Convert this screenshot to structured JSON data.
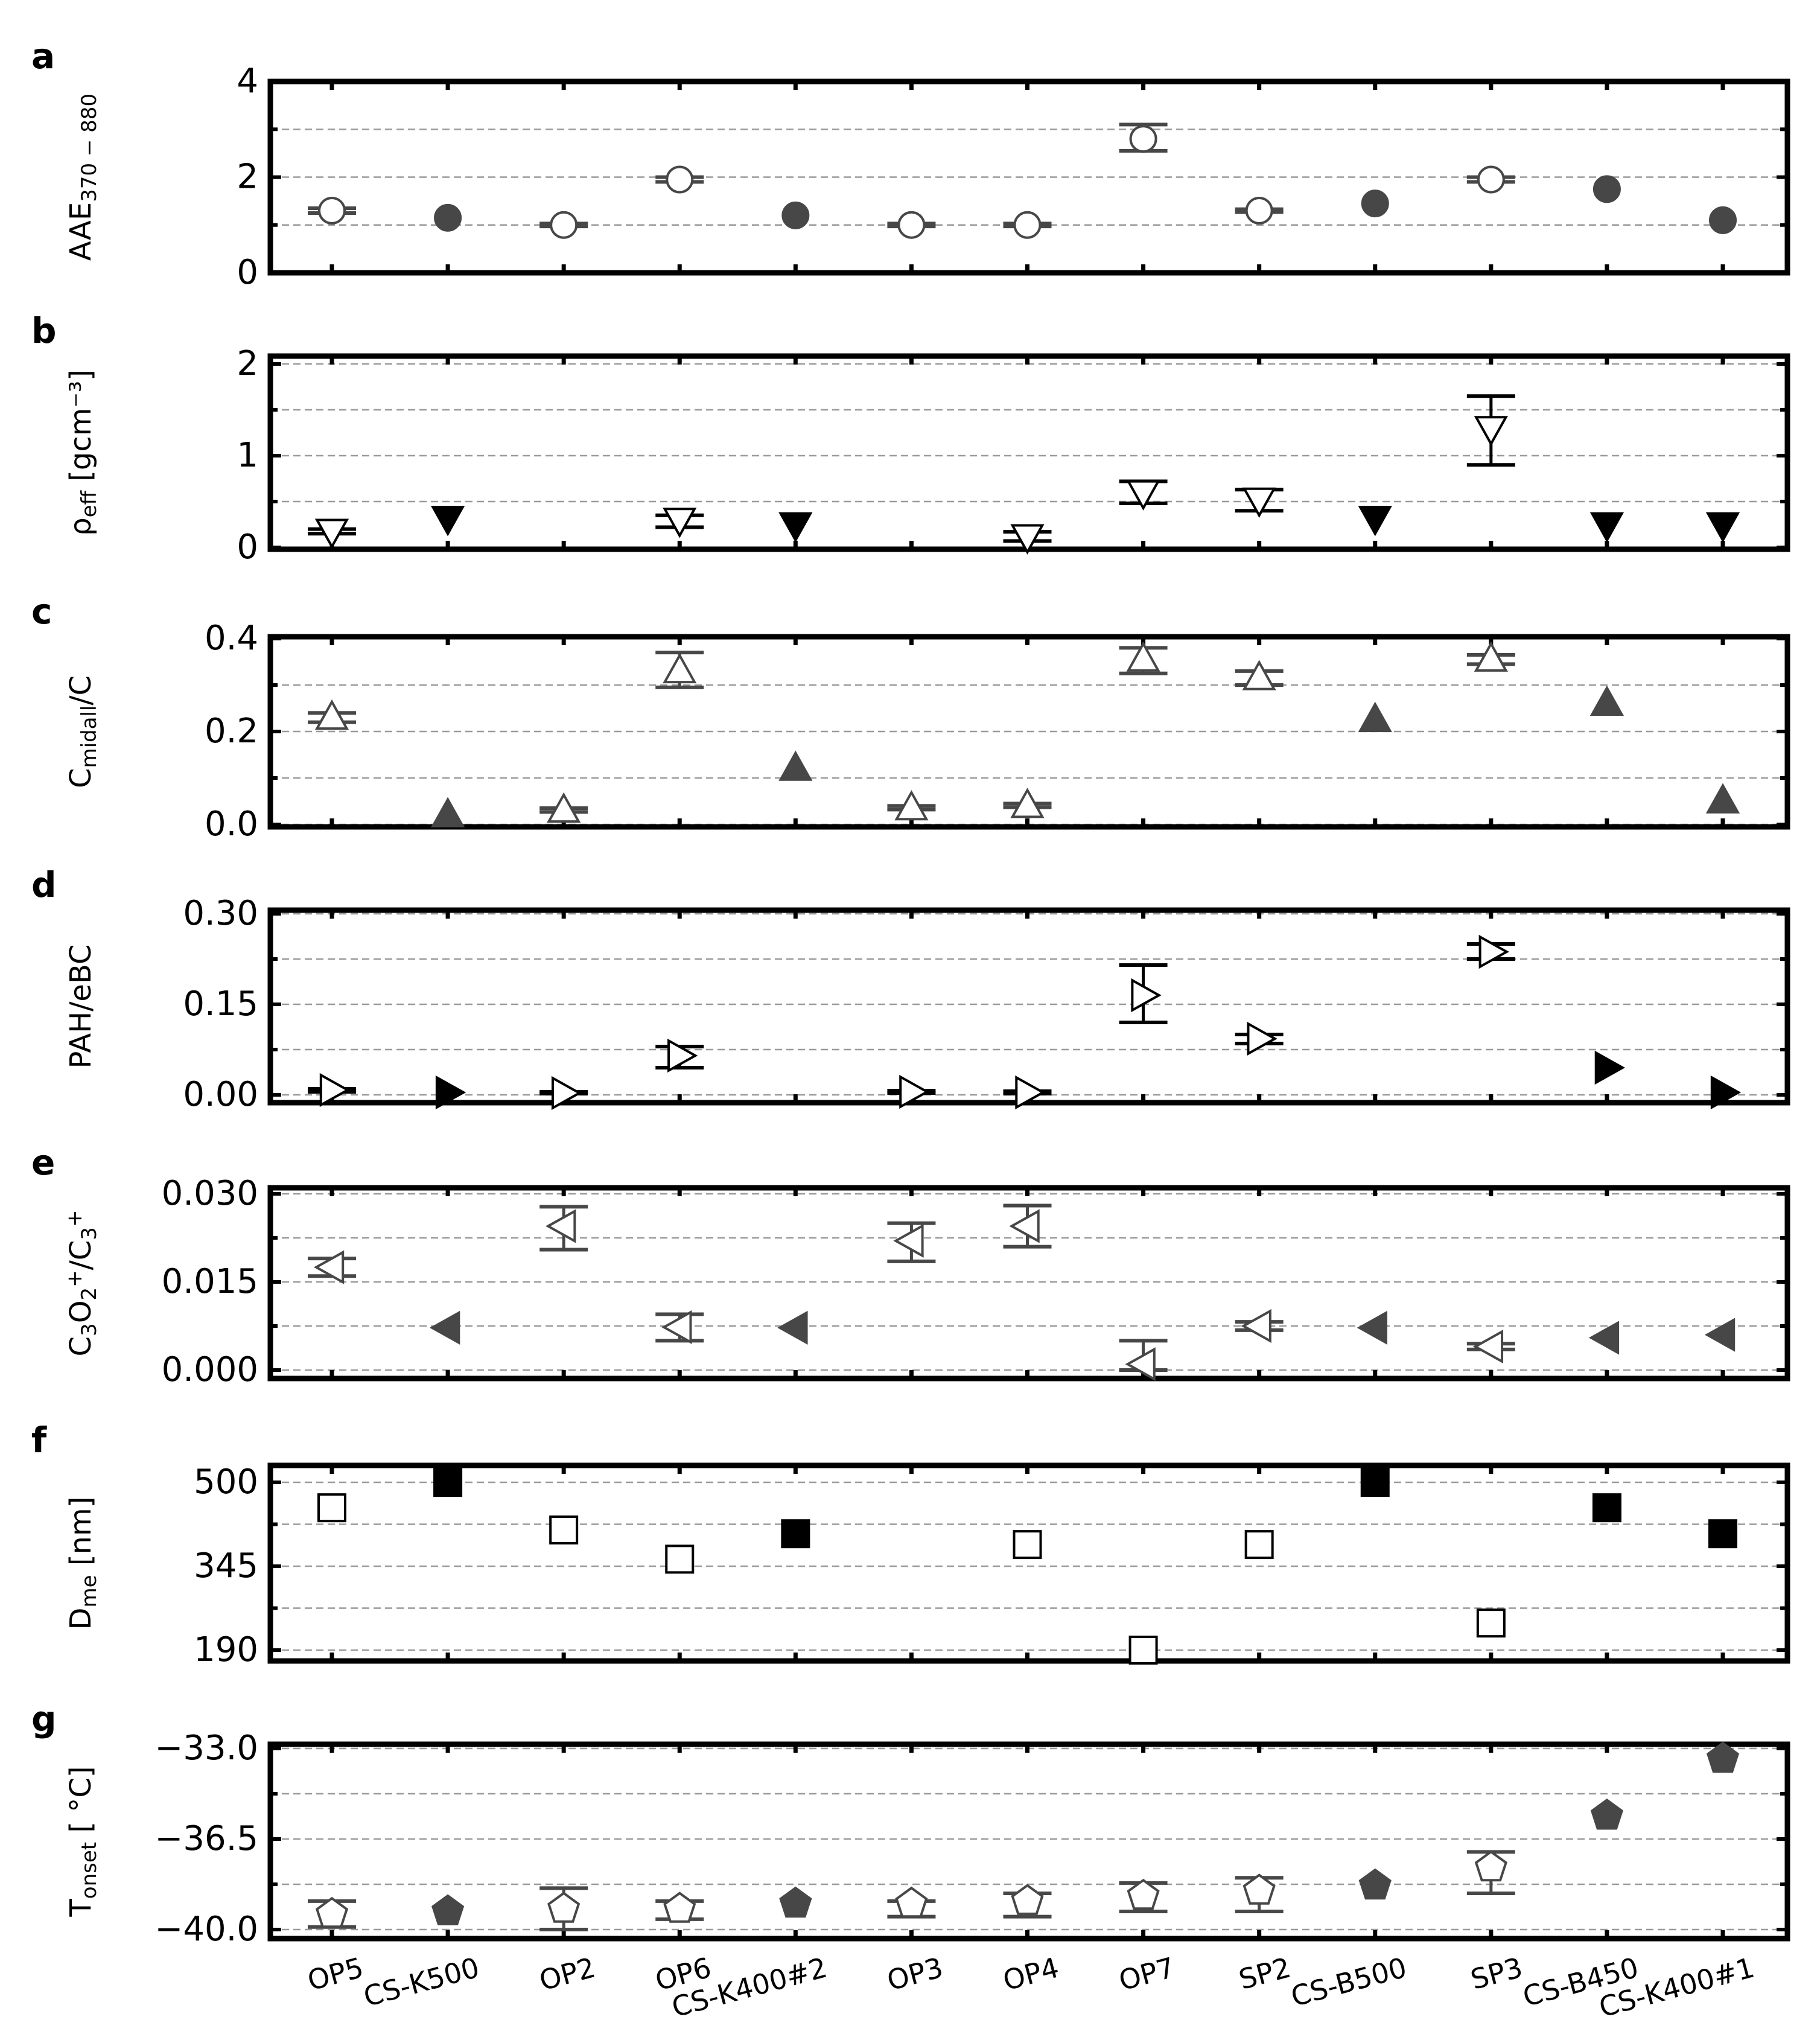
{
  "categories": [
    "OP5",
    "CS-K500",
    "OP2",
    "OP6",
    "CS-K400#2",
    "OP3",
    "OP4",
    "OP7",
    "SP2",
    "CS-B500",
    "SP3",
    "CS-B450",
    "CS-K400#1"
  ],
  "colors": {
    "gray": "#474747",
    "black": "#000000",
    "grid": "#9a9a9a"
  },
  "chart_data": [
    {
      "type": "scatter",
      "panel": "a",
      "ylabel": "AAE",
      "ylabel_sub": "370 − 880",
      "ylim": [
        0,
        4
      ],
      "yticks": [
        0,
        2,
        4
      ],
      "tick_labels": [
        "0",
        "2",
        "4"
      ],
      "marker": "circle",
      "color": "gray",
      "values": [
        1.3,
        1.15,
        1.0,
        1.95,
        1.2,
        1.0,
        1.0,
        2.8,
        1.3,
        1.45,
        1.95,
        1.75,
        1.1
      ],
      "filled": [
        false,
        true,
        false,
        false,
        true,
        false,
        false,
        false,
        false,
        true,
        false,
        true,
        true
      ],
      "err_low": [
        1.25,
        null,
        0.97,
        1.9,
        null,
        0.97,
        0.97,
        2.55,
        1.27,
        null,
        1.9,
        null,
        null
      ],
      "err_high": [
        1.35,
        null,
        1.03,
        2.0,
        null,
        1.03,
        1.03,
        3.1,
        1.33,
        null,
        2.0,
        null,
        null
      ]
    },
    {
      "type": "scatter",
      "panel": "b",
      "ylabel": "ρ",
      "ylabel_sub": "eff",
      "ylabel_post": " [gcm⁻³]",
      "ylim": [
        0,
        2
      ],
      "yticks": [
        0,
        1,
        2
      ],
      "tick_labels": [
        "0",
        "1",
        "2"
      ],
      "marker": "triangle-down",
      "color": "black",
      "values": [
        0.18,
        0.32,
        null,
        0.3,
        0.25,
        null,
        0.12,
        0.6,
        0.52,
        0.32,
        1.3,
        0.25,
        0.25
      ],
      "filled": [
        false,
        true,
        false,
        false,
        true,
        false,
        false,
        false,
        false,
        true,
        false,
        true,
        true
      ],
      "err_low": [
        0.15,
        null,
        null,
        0.22,
        null,
        null,
        0.07,
        0.48,
        0.4,
        null,
        0.9,
        null,
        null
      ],
      "err_high": [
        0.2,
        null,
        null,
        0.35,
        null,
        null,
        0.17,
        0.72,
        0.63,
        null,
        1.65,
        null,
        null
      ]
    },
    {
      "type": "scatter",
      "panel": "c",
      "ylabel": "C",
      "ylabel_sub": "mid",
      "ylabel_post": "/C",
      "ylabel_sub2": "all",
      "ylim": [
        0,
        0.4
      ],
      "yticks": [
        0,
        0.2,
        0.4
      ],
      "tick_labels": [
        "0.0",
        "0.2",
        "0.4"
      ],
      "marker": "triangle-up",
      "color": "gray",
      "values": [
        0.23,
        0.02,
        0.03,
        0.33,
        0.12,
        0.035,
        0.04,
        0.355,
        0.315,
        0.225,
        0.355,
        0.26,
        0.05
      ],
      "filled": [
        false,
        true,
        false,
        false,
        true,
        false,
        false,
        false,
        false,
        true,
        false,
        true,
        true
      ],
      "err_low": [
        0.22,
        null,
        0.027,
        0.295,
        null,
        0.032,
        0.037,
        0.325,
        0.3,
        null,
        0.345,
        null,
        null
      ],
      "err_high": [
        0.24,
        null,
        0.035,
        0.37,
        null,
        0.04,
        0.045,
        0.38,
        0.33,
        null,
        0.365,
        null,
        null
      ]
    },
    {
      "type": "scatter",
      "panel": "d",
      "ylabel": "PAH/eBC",
      "ylim": [
        0,
        0.3
      ],
      "yticks": [
        0,
        0.15,
        0.3
      ],
      "tick_labels": [
        "0.00",
        "0.15",
        "0.30"
      ],
      "marker": "triangle-right",
      "color": "black",
      "values": [
        0.008,
        0.004,
        0.003,
        0.065,
        null,
        0.005,
        0.004,
        0.165,
        0.093,
        null,
        0.237,
        0.045,
        0.004
      ],
      "filled": [
        false,
        true,
        false,
        false,
        true,
        false,
        false,
        false,
        false,
        true,
        false,
        true,
        true
      ],
      "err_low": [
        0.005,
        null,
        0.002,
        0.045,
        null,
        0.003,
        0.002,
        0.12,
        0.085,
        null,
        0.225,
        null,
        null
      ],
      "err_high": [
        0.01,
        null,
        0.005,
        0.08,
        null,
        0.007,
        0.006,
        0.215,
        0.1,
        null,
        0.25,
        null,
        null
      ]
    },
    {
      "type": "scatter",
      "panel": "e",
      "ylabel": "C",
      "ylabel_sub": "3",
      "ylabel_mid": "O",
      "ylabel_sub2": "2",
      "ylabel_sup2": "+",
      "ylabel_post": "/C",
      "ylabel_sub3": "3",
      "ylabel_sup3": "+",
      "ylim": [
        0,
        0.03
      ],
      "yticks": [
        0,
        0.015,
        0.03
      ],
      "tick_labels": [
        "0.000",
        "0.015",
        "0.030"
      ],
      "marker": "triangle-left",
      "color": "gray",
      "values": [
        0.0175,
        0.0072,
        0.0245,
        0.0073,
        0.0072,
        0.022,
        0.0245,
        0.001,
        0.0075,
        0.0072,
        0.004,
        0.0055,
        0.006
      ],
      "filled": [
        false,
        true,
        false,
        false,
        true,
        false,
        false,
        false,
        false,
        true,
        false,
        true,
        true
      ],
      "err_low": [
        0.016,
        null,
        0.0205,
        0.005,
        null,
        0.0185,
        0.021,
        0.0,
        0.0068,
        null,
        0.0035,
        null,
        null
      ],
      "err_high": [
        0.019,
        null,
        0.0278,
        0.0095,
        null,
        0.025,
        0.028,
        0.005,
        0.0082,
        null,
        0.0045,
        null,
        null
      ]
    },
    {
      "type": "scatter",
      "panel": "f",
      "ylabel": "D",
      "ylabel_sub": "me",
      "ylabel_post": " [nm]",
      "ylim": [
        190,
        500
      ],
      "yticks": [
        190,
        345,
        500
      ],
      "tick_labels": [
        "190",
        "345",
        "500"
      ],
      "marker": "square",
      "color": "black",
      "values": [
        453,
        500,
        412,
        358,
        405,
        null,
        385,
        190,
        385,
        500,
        240,
        453,
        405
      ],
      "filled": [
        false,
        true,
        false,
        false,
        true,
        false,
        false,
        false,
        false,
        true,
        false,
        true,
        true
      ],
      "err_low": [
        null,
        null,
        null,
        null,
        null,
        null,
        null,
        null,
        null,
        null,
        null,
        null,
        null
      ],
      "err_high": [
        null,
        null,
        null,
        null,
        null,
        null,
        null,
        null,
        null,
        null,
        null,
        null,
        null
      ]
    },
    {
      "type": "scatter",
      "panel": "g",
      "ylabel": "T",
      "ylabel_sub": "onset",
      "ylabel_post": " [ °C]",
      "ylim": [
        -40,
        -33
      ],
      "yticks": [
        -40,
        -36.5,
        -33
      ],
      "tick_labels": [
        "−40.0",
        "−36.5",
        "−33.0"
      ],
      "marker": "pentagon",
      "color": "gray",
      "values": [
        -39.4,
        -39.3,
        -39.2,
        -39.2,
        -39.0,
        -39.0,
        -38.9,
        -38.7,
        -38.5,
        -38.3,
        -37.6,
        -35.6,
        -33.4
      ],
      "filled": [
        false,
        true,
        false,
        false,
        true,
        false,
        false,
        false,
        false,
        true,
        false,
        true,
        true
      ],
      "err_low": [
        -39.9,
        null,
        -40.0,
        -39.6,
        null,
        -39.5,
        -39.5,
        -39.3,
        -39.3,
        null,
        -38.6,
        null,
        null
      ],
      "err_high": [
        -38.9,
        null,
        -38.4,
        -38.9,
        null,
        -38.9,
        -38.6,
        -38.2,
        -38.0,
        null,
        -37.0,
        null,
        null
      ]
    }
  ]
}
